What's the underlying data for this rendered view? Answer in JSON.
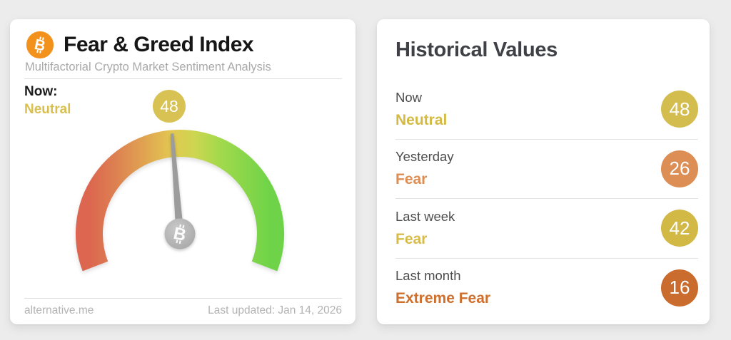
{
  "window": {
    "background": "#ececec"
  },
  "fear_greed_card": {
    "title": "Fear & Greed Index",
    "subtitle": "Multifactorial Crypto Market Sentiment Analysis",
    "now_label": "Now:",
    "now": {
      "classification": "Neutral",
      "value": "48",
      "text_color": "#d9bf4e",
      "badge_color": "#d7c253"
    },
    "footer": {
      "source": "alternative.me",
      "last_updated": "Last updated: Jan 14, 2026"
    },
    "bitcoin_icon_color": "#f2921d",
    "needle_color": "#9c9c9c",
    "hub_color": "#b4b4b4"
  },
  "historical_values": {
    "title": "Historical Values",
    "rows": [
      {
        "label": "Now",
        "classification": "Neutral",
        "value": "48",
        "text_color": "#d4ba42",
        "badge_color": "#d4bd4f"
      },
      {
        "label": "Yesterday",
        "classification": "Fear",
        "value": "26",
        "text_color": "#df8d50",
        "badge_color": "#dd8e55"
      },
      {
        "label": "Last week",
        "classification": "Fear",
        "value": "42",
        "text_color": "#d9bc48",
        "badge_color": "#d2b845"
      },
      {
        "label": "Last month",
        "classification": "Extreme Fear",
        "value": "16",
        "text_color": "#cf6f2d",
        "badge_color": "#c96c2d"
      }
    ]
  },
  "chart_data": {
    "type": "gauge",
    "title": "Fear & Greed Index",
    "subtitle": "Multifactorial Crypto Market Sentiment Analysis",
    "value": 48,
    "min": 0,
    "max": 100,
    "classification": "Neutral",
    "start_angle_deg": 201,
    "sweep_deg": 222,
    "gradient_stops": [
      {
        "offset": 0,
        "color": "#dc6650"
      },
      {
        "offset": 14,
        "color": "#dd7f51"
      },
      {
        "offset": 30,
        "color": "#e0a351"
      },
      {
        "offset": 46,
        "color": "#e2c852"
      },
      {
        "offset": 58,
        "color": "#cdd650"
      },
      {
        "offset": 72,
        "color": "#a3d94c"
      },
      {
        "offset": 100,
        "color": "#6ed348"
      }
    ],
    "historical": [
      {
        "period": "Now",
        "classification": "Neutral",
        "value": 48
      },
      {
        "period": "Yesterday",
        "classification": "Fear",
        "value": 26
      },
      {
        "period": "Last week",
        "classification": "Fear",
        "value": 42
      },
      {
        "period": "Last month",
        "classification": "Extreme Fear",
        "value": 16
      }
    ]
  }
}
